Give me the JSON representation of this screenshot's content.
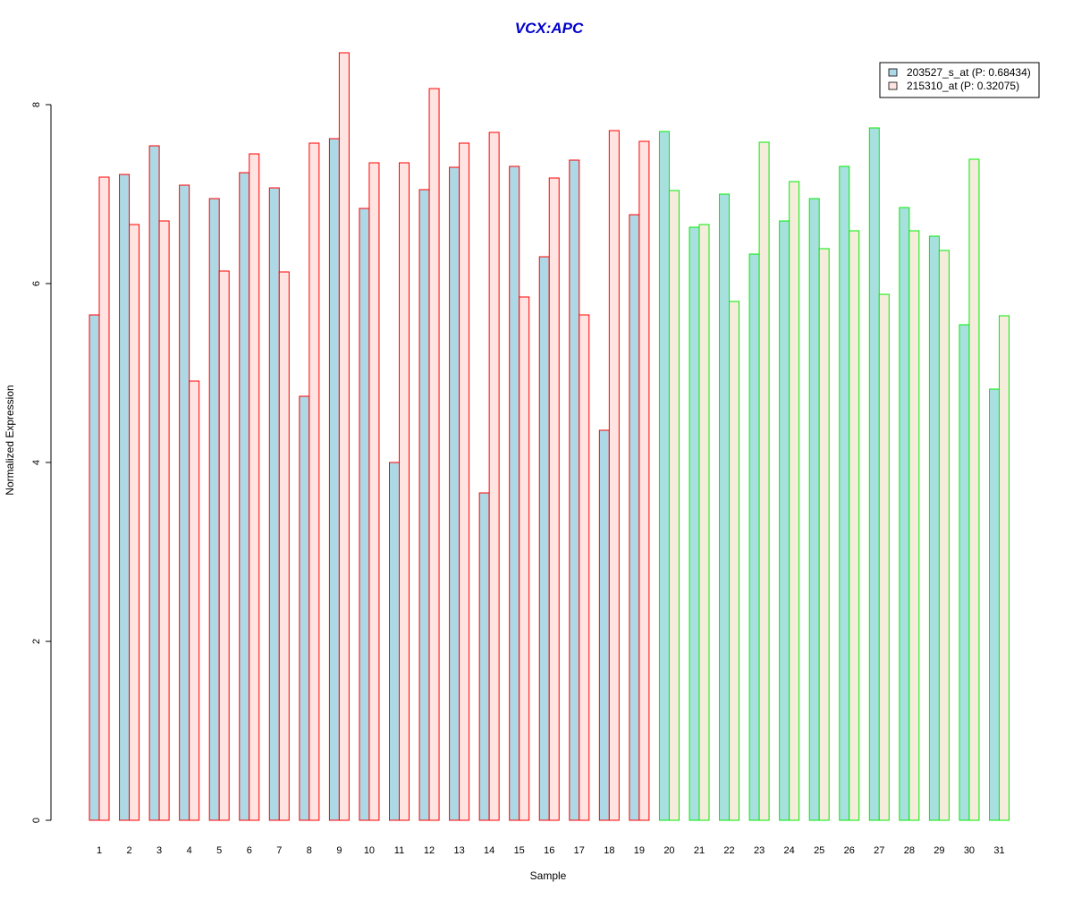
{
  "chart_data": {
    "type": "bar",
    "title": "VCX:APC",
    "xlabel": "Sample",
    "ylabel": "Normalized Expression",
    "ylim": [
      0,
      8
    ],
    "yticks": [
      0,
      2,
      4,
      6,
      8
    ],
    "legend_position": "top-right",
    "categories": [
      "1",
      "2",
      "3",
      "4",
      "5",
      "6",
      "7",
      "8",
      "9",
      "10",
      "11",
      "12",
      "13",
      "14",
      "15",
      "16",
      "17",
      "18",
      "19",
      "20",
      "21",
      "22",
      "23",
      "24",
      "25",
      "26",
      "27",
      "28",
      "29",
      "30",
      "31"
    ],
    "groups": [
      {
        "samples_from": 1,
        "samples_to": 19,
        "border_color": "#ff0000"
      },
      {
        "samples_from": 20,
        "samples_to": 31,
        "border_color": "#00ee00"
      }
    ],
    "series": [
      {
        "name": "203527_s_at (P: 0.68434)",
        "fill": "#add8e6",
        "fill_group2": "#a8e0e0",
        "values": [
          5.65,
          7.22,
          7.54,
          7.1,
          6.95,
          7.24,
          7.07,
          4.74,
          7.62,
          6.84,
          4.0,
          7.05,
          7.3,
          3.66,
          7.31,
          6.3,
          7.38,
          4.36,
          6.77,
          7.7,
          6.63,
          7.0,
          6.33,
          6.7,
          6.95,
          7.31,
          7.74,
          6.85,
          6.53,
          5.54,
          4.82
        ]
      },
      {
        "name": "215310_at (P: 0.32075)",
        "fill": "#ffe4e1",
        "fill_group2": "#f6ecdc",
        "values": [
          7.19,
          6.66,
          6.7,
          4.91,
          6.14,
          7.45,
          6.13,
          7.57,
          8.58,
          7.35,
          7.35,
          8.18,
          7.57,
          7.69,
          5.85,
          7.18,
          5.65,
          7.71,
          7.59,
          7.04,
          6.66,
          5.8,
          7.58,
          7.14,
          6.39,
          6.59,
          5.88,
          6.59,
          6.37,
          7.39,
          5.64
        ]
      }
    ],
    "colors": {
      "title": "#0000cc",
      "axis": "#000000"
    }
  }
}
